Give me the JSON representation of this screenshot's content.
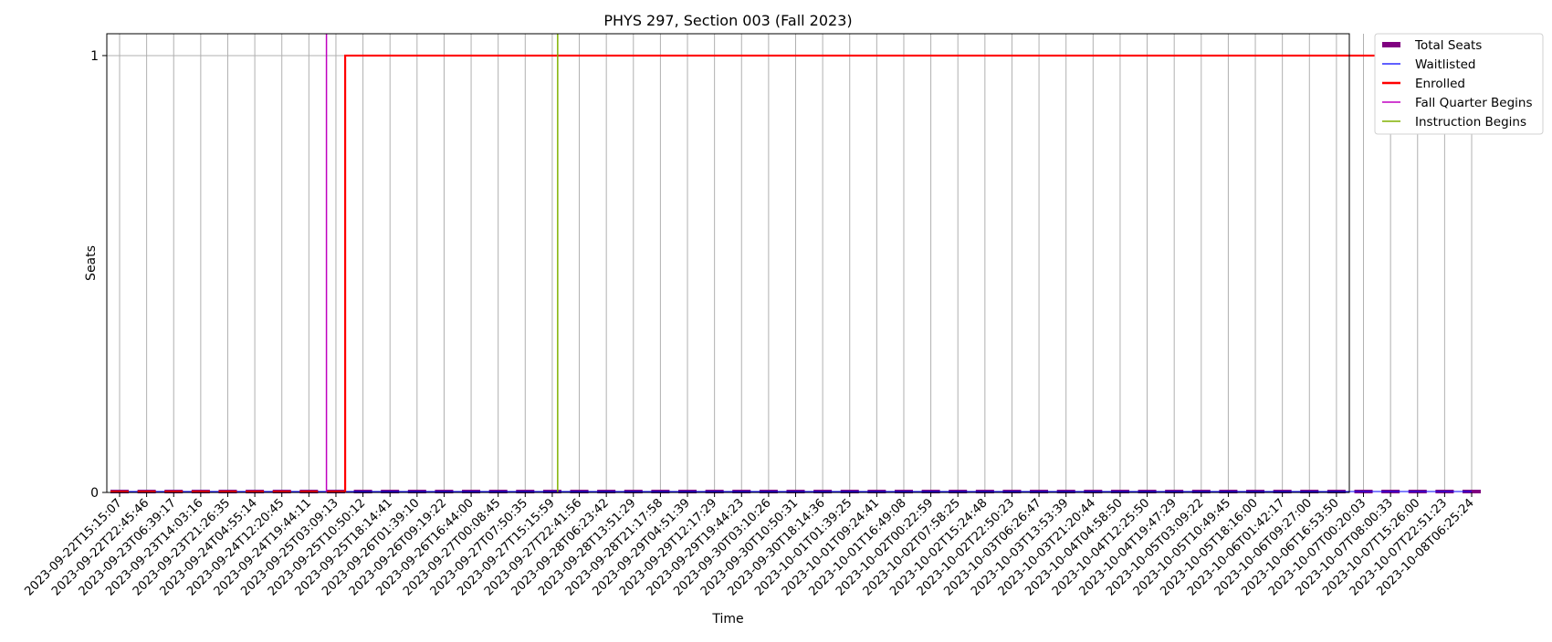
{
  "chart_data": {
    "type": "line",
    "title": "PHYS 297, Section 003 (Fall 2023)",
    "xlabel": "Time",
    "ylabel": "Seats",
    "ylim": [
      0,
      1.05
    ],
    "yticks": [
      0,
      1
    ],
    "grid": true,
    "legend_position": "outside-top-right",
    "x": [
      "2023-09-22T15:15:07",
      "2023-09-22T22:45:46",
      "2023-09-23T06:39:17",
      "2023-09-23T14:03:16",
      "2023-09-23T21:26:35",
      "2023-09-24T04:55:14",
      "2023-09-24T12:20:45",
      "2023-09-24T19:44:11",
      "2023-09-25T03:09:13",
      "2023-09-25T10:50:12",
      "2023-09-25T18:14:41",
      "2023-09-26T01:39:10",
      "2023-09-26T09:19:22",
      "2023-09-26T16:44:00",
      "2023-09-27T00:08:45",
      "2023-09-27T07:50:35",
      "2023-09-27T15:15:59",
      "2023-09-27T22:41:56",
      "2023-09-28T06:23:42",
      "2023-09-28T13:51:29",
      "2023-09-28T21:17:58",
      "2023-09-29T04:51:39",
      "2023-09-29T12:17:29",
      "2023-09-29T19:44:23",
      "2023-09-30T03:10:26",
      "2023-09-30T10:50:31",
      "2023-09-30T18:14:36",
      "2023-10-01T01:39:25",
      "2023-10-01T09:24:41",
      "2023-10-01T16:49:08",
      "2023-10-02T00:22:59",
      "2023-10-02T07:58:25",
      "2023-10-02T15:24:48",
      "2023-10-02T22:50:23",
      "2023-10-03T06:26:47",
      "2023-10-03T13:53:39",
      "2023-10-03T21:20:44",
      "2023-10-04T04:58:50",
      "2023-10-04T12:25:50",
      "2023-10-04T19:47:29",
      "2023-10-05T03:09:22",
      "2023-10-05T10:49:45",
      "2023-10-05T18:16:00",
      "2023-10-06T01:42:17",
      "2023-10-06T09:27:00",
      "2023-10-06T16:53:50",
      "2023-10-07T00:20:03",
      "2023-10-07T08:00:33",
      "2023-10-07T15:26:00",
      "2023-10-07T22:51:23",
      "2023-10-08T06:25:24"
    ],
    "series": [
      {
        "name": "Total Seats",
        "color": "#800080",
        "style": "bar-segments",
        "values": [
          0,
          0,
          0,
          0,
          0,
          0,
          0,
          0,
          0,
          0,
          0,
          0,
          0,
          0,
          0,
          0,
          0,
          0,
          0,
          0,
          0,
          0,
          0,
          0,
          0,
          0,
          0,
          0,
          0,
          0,
          0,
          0,
          0,
          0,
          0,
          0,
          0,
          0,
          0,
          0,
          0,
          0,
          0,
          0,
          0,
          0,
          0,
          0,
          0,
          0,
          0
        ]
      },
      {
        "name": "Waitlisted",
        "color": "#0000ff",
        "style": "line",
        "values": [
          0,
          0,
          0,
          0,
          0,
          0,
          0,
          0,
          0,
          0,
          0,
          0,
          0,
          0,
          0,
          0,
          0,
          0,
          0,
          0,
          0,
          0,
          0,
          0,
          0,
          0,
          0,
          0,
          0,
          0,
          0,
          0,
          0,
          0,
          0,
          0,
          0,
          0,
          0,
          0,
          0,
          0,
          0,
          0,
          0,
          0,
          0,
          0,
          0,
          0,
          0
        ]
      },
      {
        "name": "Enrolled",
        "color": "#ff0000",
        "style": "step",
        "values": [
          0,
          0,
          0,
          0,
          0,
          0,
          0,
          0,
          0,
          1,
          1,
          1,
          1,
          1,
          1,
          1,
          1,
          1,
          1,
          1,
          1,
          1,
          1,
          1,
          1,
          1,
          1,
          1,
          1,
          1,
          1,
          1,
          1,
          1,
          1,
          1,
          1,
          1,
          1,
          1,
          1,
          1,
          1,
          1,
          1,
          1,
          1,
          1,
          1,
          1,
          1
        ]
      }
    ],
    "vlines": [
      {
        "name": "Fall Quarter Begins",
        "color": "#c000c0",
        "x_index": 7.65
      },
      {
        "name": "Instruction Begins",
        "color": "#80b000",
        "x_index": 16.2
      }
    ]
  }
}
